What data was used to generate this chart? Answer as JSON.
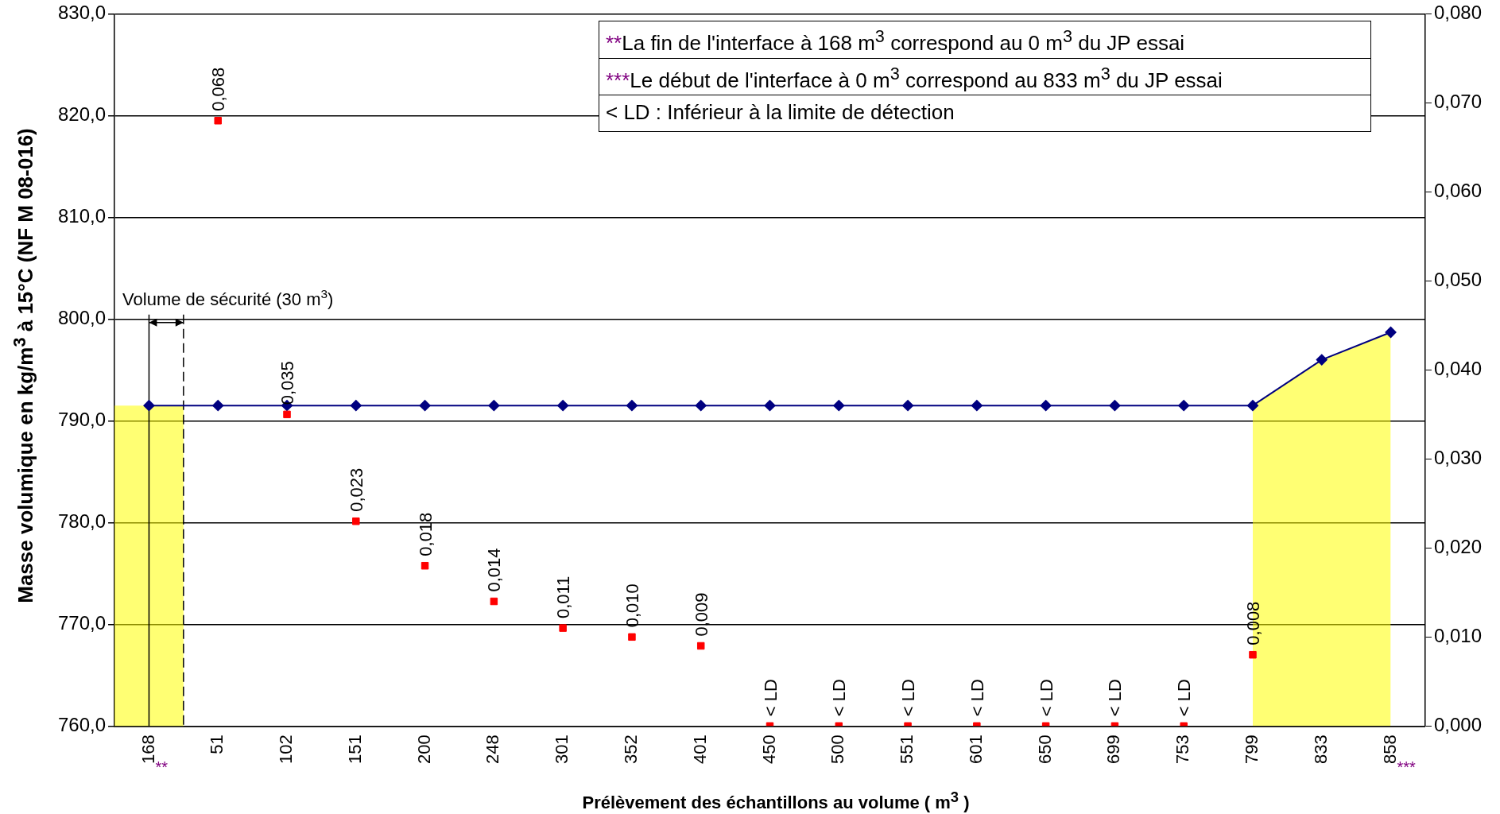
{
  "chart_data": {
    "type": "line",
    "xlabel": "Prélèvement des échantillons au volume ( m$^{3}$ )",
    "ylabel": "Masse volumique en kg/m$^{3}$ à 15°C (NF M 08-016)",
    "categories": [
      "168",
      "51",
      "102",
      "151",
      "200",
      "248",
      "301",
      "352",
      "401",
      "450",
      "500",
      "551",
      "601",
      "650",
      "699",
      "753",
      "799",
      "833",
      "858"
    ],
    "series": [
      {
        "type": "area",
        "color": "#ffff00",
        "values": [
          null,
          null,
          null,
          null,
          null,
          null,
          null,
          null,
          null,
          null,
          null,
          null,
          null,
          null,
          null,
          null,
          791.5,
          796.0,
          798.7
        ]
      },
      {
        "color": "#000080",
        "marker": "diamond",
        "values": [
          791.5,
          791.5,
          791.5,
          791.5,
          791.5,
          791.5,
          791.5,
          791.5,
          791.5,
          791.5,
          791.5,
          791.5,
          791.5,
          791.5,
          791.5,
          791.5,
          791.5,
          796.0,
          798.7
        ]
      },
      {
        "type": "scatter",
        "color": "#ff0000",
        "marker": "square",
        "axis": "y2",
        "values": [
          null,
          0.068,
          0.035,
          0.023,
          0.018,
          0.014,
          0.011,
          0.01,
          0.009,
          0,
          0,
          0,
          0,
          0,
          0,
          0,
          0.008,
          null,
          null
        ],
        "value_labels": [
          null,
          "0,068",
          "0,035",
          "0,023",
          "0,018",
          "0,014",
          "0,011",
          "0,010",
          "0,009",
          "< LD",
          "< LD",
          "< LD",
          "< LD",
          "< LD",
          "< LD",
          "< LD",
          "0,008",
          null,
          null
        ]
      }
    ],
    "ylim": [
      760,
      830
    ],
    "yticks": [
      {
        "value": 760,
        "label": "760,0"
      },
      {
        "value": 770,
        "label": "770,0"
      },
      {
        "value": 780,
        "label": "780,0"
      },
      {
        "value": 790,
        "label": "790,0"
      },
      {
        "value": 800,
        "label": "800,0"
      },
      {
        "value": 810,
        "label": "810,0"
      },
      {
        "value": 820,
        "label": "820,0"
      },
      {
        "value": 830,
        "label": "830,0"
      }
    ],
    "y2lim": [
      0,
      0.08
    ],
    "y2ticks": [
      {
        "value": 0,
        "label": "0,000"
      },
      {
        "value": 0.01,
        "label": "0,010"
      },
      {
        "value": 0.02,
        "label": "0,020"
      },
      {
        "value": 0.03,
        "label": "0,030"
      },
      {
        "value": 0.04,
        "label": "0,040"
      },
      {
        "value": 0.05,
        "label": "0,050"
      },
      {
        "value": 0.06,
        "label": "0,060"
      },
      {
        "value": 0.07,
        "label": "0,070"
      },
      {
        "value": 0.08,
        "label": "0,080"
      }
    ],
    "grid": "y",
    "bands": [
      {
        "axis": "x",
        "from": "168",
        "to": "168",
        "label": "Volume de sécurité (30 m$^{3}$)",
        "color": "#ffff00"
      }
    ],
    "annotations": [
      "**La fin de l'interface à 168 m$^{3}$ correspond au 0 m$^{3}$ du JP essai",
      "***Le début de l'interface à 0 m$^{3}$ correspond au 833 m$^{3}$ du JP essai",
      "< LD : Inférieur à la limite de détection",
      "**",
      "***"
    ]
  }
}
